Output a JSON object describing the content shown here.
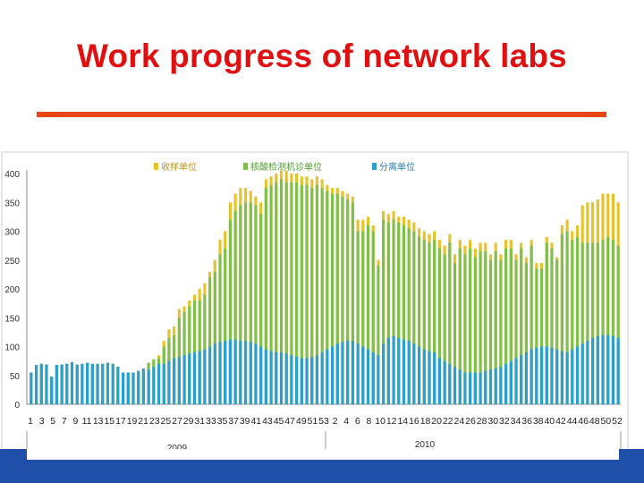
{
  "slide": {
    "title": "Work progress of network labs"
  },
  "colors": {
    "title": "#e01010",
    "rule": "#e8470f",
    "footer": "#1f4fa8"
  },
  "chart_data": {
    "type": "bar",
    "title": "",
    "xlabel": "",
    "ylabel": "",
    "ylim": [
      0,
      400
    ],
    "yticks": [
      0,
      50,
      100,
      150,
      200,
      250,
      300,
      350,
      400
    ],
    "grid": false,
    "legend_position": "top",
    "series": [
      {
        "name": "收样单位",
        "color": "#e8c22a",
        "values": [
          55,
          68,
          70,
          69,
          48,
          68,
          69,
          70,
          73,
          69,
          70,
          72,
          70,
          70,
          70,
          72,
          70,
          65,
          55,
          55,
          55,
          58,
          62,
          72,
          78,
          85,
          110,
          130,
          135,
          165,
          170,
          180,
          190,
          200,
          210,
          230,
          250,
          285,
          300,
          350,
          365,
          375,
          375,
          370,
          360,
          350,
          390,
          395,
          400,
          405,
          405,
          400,
          400,
          395,
          395,
          390,
          395,
          390,
          380,
          375,
          375,
          370,
          365,
          360,
          320,
          320,
          325,
          310,
          250,
          335,
          330,
          335,
          325,
          325,
          320,
          315,
          305,
          300,
          295,
          300,
          285,
          275,
          295,
          260,
          285,
          275,
          285,
          270,
          280,
          280,
          260,
          280,
          260,
          285,
          285,
          260,
          280,
          255,
          285,
          245,
          245,
          290,
          280,
          255,
          310,
          320,
          300,
          310,
          345,
          350,
          350,
          355,
          365,
          365,
          365,
          350
        ]
      },
      {
        "name": "核酸检测机诊单位",
        "color": "#7ec04a",
        "values": [
          55,
          68,
          70,
          69,
          48,
          68,
          69,
          70,
          73,
          69,
          70,
          72,
          70,
          70,
          70,
          72,
          70,
          65,
          55,
          55,
          55,
          58,
          62,
          72,
          78,
          80,
          100,
          115,
          120,
          150,
          160,
          170,
          180,
          180,
          190,
          220,
          230,
          260,
          270,
          320,
          335,
          345,
          350,
          350,
          345,
          330,
          375,
          380,
          385,
          390,
          385,
          385,
          385,
          380,
          380,
          375,
          380,
          375,
          370,
          365,
          365,
          360,
          355,
          350,
          300,
          300,
          310,
          300,
          240,
          320,
          315,
          320,
          315,
          310,
          305,
          300,
          290,
          285,
          280,
          285,
          270,
          260,
          280,
          245,
          270,
          260,
          270,
          255,
          265,
          265,
          250,
          265,
          250,
          270,
          270,
          250,
          270,
          245,
          275,
          235,
          235,
          280,
          270,
          250,
          295,
          300,
          285,
          290,
          280,
          280,
          280,
          280,
          285,
          290,
          285,
          275
        ]
      },
      {
        "name": "分离单位",
        "color": "#2a9fd0",
        "values": [
          55,
          68,
          70,
          69,
          48,
          68,
          69,
          70,
          73,
          69,
          70,
          72,
          70,
          70,
          70,
          72,
          70,
          65,
          55,
          55,
          55,
          58,
          62,
          60,
          65,
          70,
          70,
          75,
          80,
          82,
          85,
          88,
          90,
          92,
          95,
          100,
          105,
          108,
          110,
          112,
          112,
          110,
          110,
          108,
          105,
          100,
          95,
          92,
          90,
          90,
          88,
          85,
          82,
          80,
          80,
          82,
          85,
          90,
          95,
          100,
          105,
          108,
          110,
          110,
          105,
          100,
          95,
          90,
          85,
          105,
          115,
          118,
          115,
          112,
          110,
          105,
          100,
          95,
          92,
          90,
          80,
          75,
          70,
          65,
          60,
          55,
          55,
          55,
          55,
          58,
          60,
          62,
          65,
          70,
          75,
          80,
          85,
          90,
          95,
          98,
          100,
          100,
          98,
          95,
          92,
          90,
          95,
          100,
          105,
          110,
          115,
          118,
          120,
          120,
          118,
          115
        ]
      }
    ],
    "xtick_labels": [
      "1",
      "3",
      "5",
      "7",
      "9",
      "11",
      "13",
      "15",
      "17",
      "19",
      "21",
      "23",
      "25",
      "27",
      "29",
      "31",
      "33",
      "35",
      "37",
      "39",
      "41",
      "43",
      "45",
      "47",
      "49",
      "51",
      "53",
      "2",
      "4",
      "6",
      "8",
      "10",
      "12",
      "14",
      "16",
      "18",
      "20",
      "22",
      "24",
      "26",
      "28",
      "30",
      "32",
      "34",
      "36",
      "38",
      "40",
      "42",
      "44",
      "46",
      "48",
      "50",
      "52"
    ],
    "year_labels": [
      "2009",
      "2010"
    ]
  }
}
